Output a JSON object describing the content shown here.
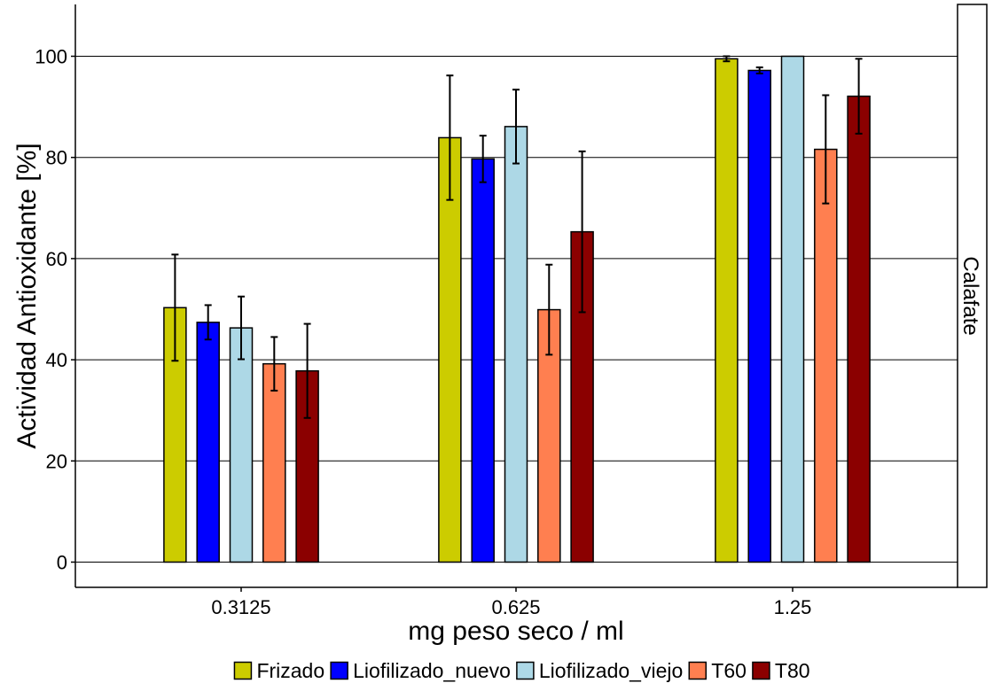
{
  "chart_data": {
    "type": "bar",
    "xlabel": "mg peso seco / ml",
    "ylabel": "Actividad Antioxidante [%]",
    "facet_label": "Calafate",
    "categories": [
      "0.3125",
      "0.625",
      "1.25"
    ],
    "ylim": [
      -5,
      110
    ],
    "yticks": [
      0,
      20,
      40,
      60,
      80,
      100
    ],
    "grid": "horizontal major only",
    "legend_position": "bottom",
    "series": [
      {
        "name": "Frizado",
        "color": "#CCCC00",
        "values": [
          50.3,
          83.9,
          99.5
        ],
        "error": [
          10.5,
          12.3,
          0.5
        ]
      },
      {
        "name": "Liofilizado_nuevo",
        "color": "#0000FF",
        "values": [
          47.4,
          79.7,
          97.2
        ],
        "error": [
          3.4,
          4.6,
          0.6
        ]
      },
      {
        "name": "Liofilizado_viejo",
        "color": "#ADD8E6",
        "values": [
          46.3,
          86.1,
          100.0
        ],
        "error": [
          6.2,
          7.3,
          0
        ]
      },
      {
        "name": "T60",
        "color": "#FF7F50",
        "values": [
          39.2,
          49.9,
          81.6
        ],
        "error": [
          5.3,
          8.9,
          10.7
        ]
      },
      {
        "name": "T80",
        "color": "#8B0000",
        "values": [
          37.8,
          65.3,
          92.1
        ],
        "error": [
          9.3,
          15.9,
          7.4
        ]
      }
    ]
  }
}
